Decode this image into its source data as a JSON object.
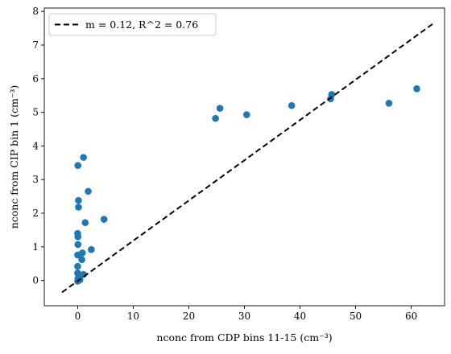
{
  "chart_data": {
    "type": "scatter",
    "xlabel": "nconc from CDP bins 11-15 (cm⁻³)",
    "ylabel": "nconc from CIP bin 1 (cm⁻³)",
    "xlim": [
      -6,
      66
    ],
    "ylim": [
      -0.75,
      8.1
    ],
    "x_ticks": [
      0,
      10,
      20,
      30,
      40,
      50,
      60
    ],
    "y_ticks": [
      0,
      1,
      2,
      3,
      4,
      5,
      6,
      7,
      8
    ],
    "grid": false,
    "legend_position": "top-left",
    "legend": [
      {
        "label": "m = 0.12, R^2 = 0.76",
        "style": "dashed",
        "color": "#000000"
      }
    ],
    "fit_line": {
      "x": [
        -2.8,
        64.3
      ],
      "y": [
        -0.35,
        7.68
      ]
    },
    "colors": {
      "points": "#1f77b4",
      "fit_line": "#000000"
    },
    "series": [
      {
        "marker": "circle",
        "points": [
          [
            0.05,
            3.42
          ],
          [
            1.05,
            3.66
          ],
          [
            0.15,
            2.38
          ],
          [
            0.15,
            2.18
          ],
          [
            1.9,
            2.65
          ],
          [
            1.35,
            1.72
          ],
          [
            4.75,
            1.82
          ],
          [
            0.0,
            1.4
          ],
          [
            0.05,
            1.3
          ],
          [
            0.05,
            1.07
          ],
          [
            2.45,
            0.92
          ],
          [
            0.85,
            0.82
          ],
          [
            0.0,
            0.76
          ],
          [
            0.75,
            0.62
          ],
          [
            0.0,
            0.42
          ],
          [
            1.05,
            0.18
          ],
          [
            0.0,
            0.22
          ],
          [
            0.2,
            0.12
          ],
          [
            0.05,
            0.05
          ],
          [
            0.15,
            0.0
          ],
          [
            0.0,
            -0.02
          ],
          [
            0.4,
            0.02
          ],
          [
            0.1,
            0.08
          ],
          [
            24.8,
            4.82
          ],
          [
            25.6,
            5.12
          ],
          [
            30.4,
            4.93
          ],
          [
            38.5,
            5.2
          ],
          [
            45.5,
            5.4
          ],
          [
            45.7,
            5.53
          ],
          [
            56.0,
            5.27
          ],
          [
            61.0,
            5.7
          ]
        ]
      }
    ]
  }
}
